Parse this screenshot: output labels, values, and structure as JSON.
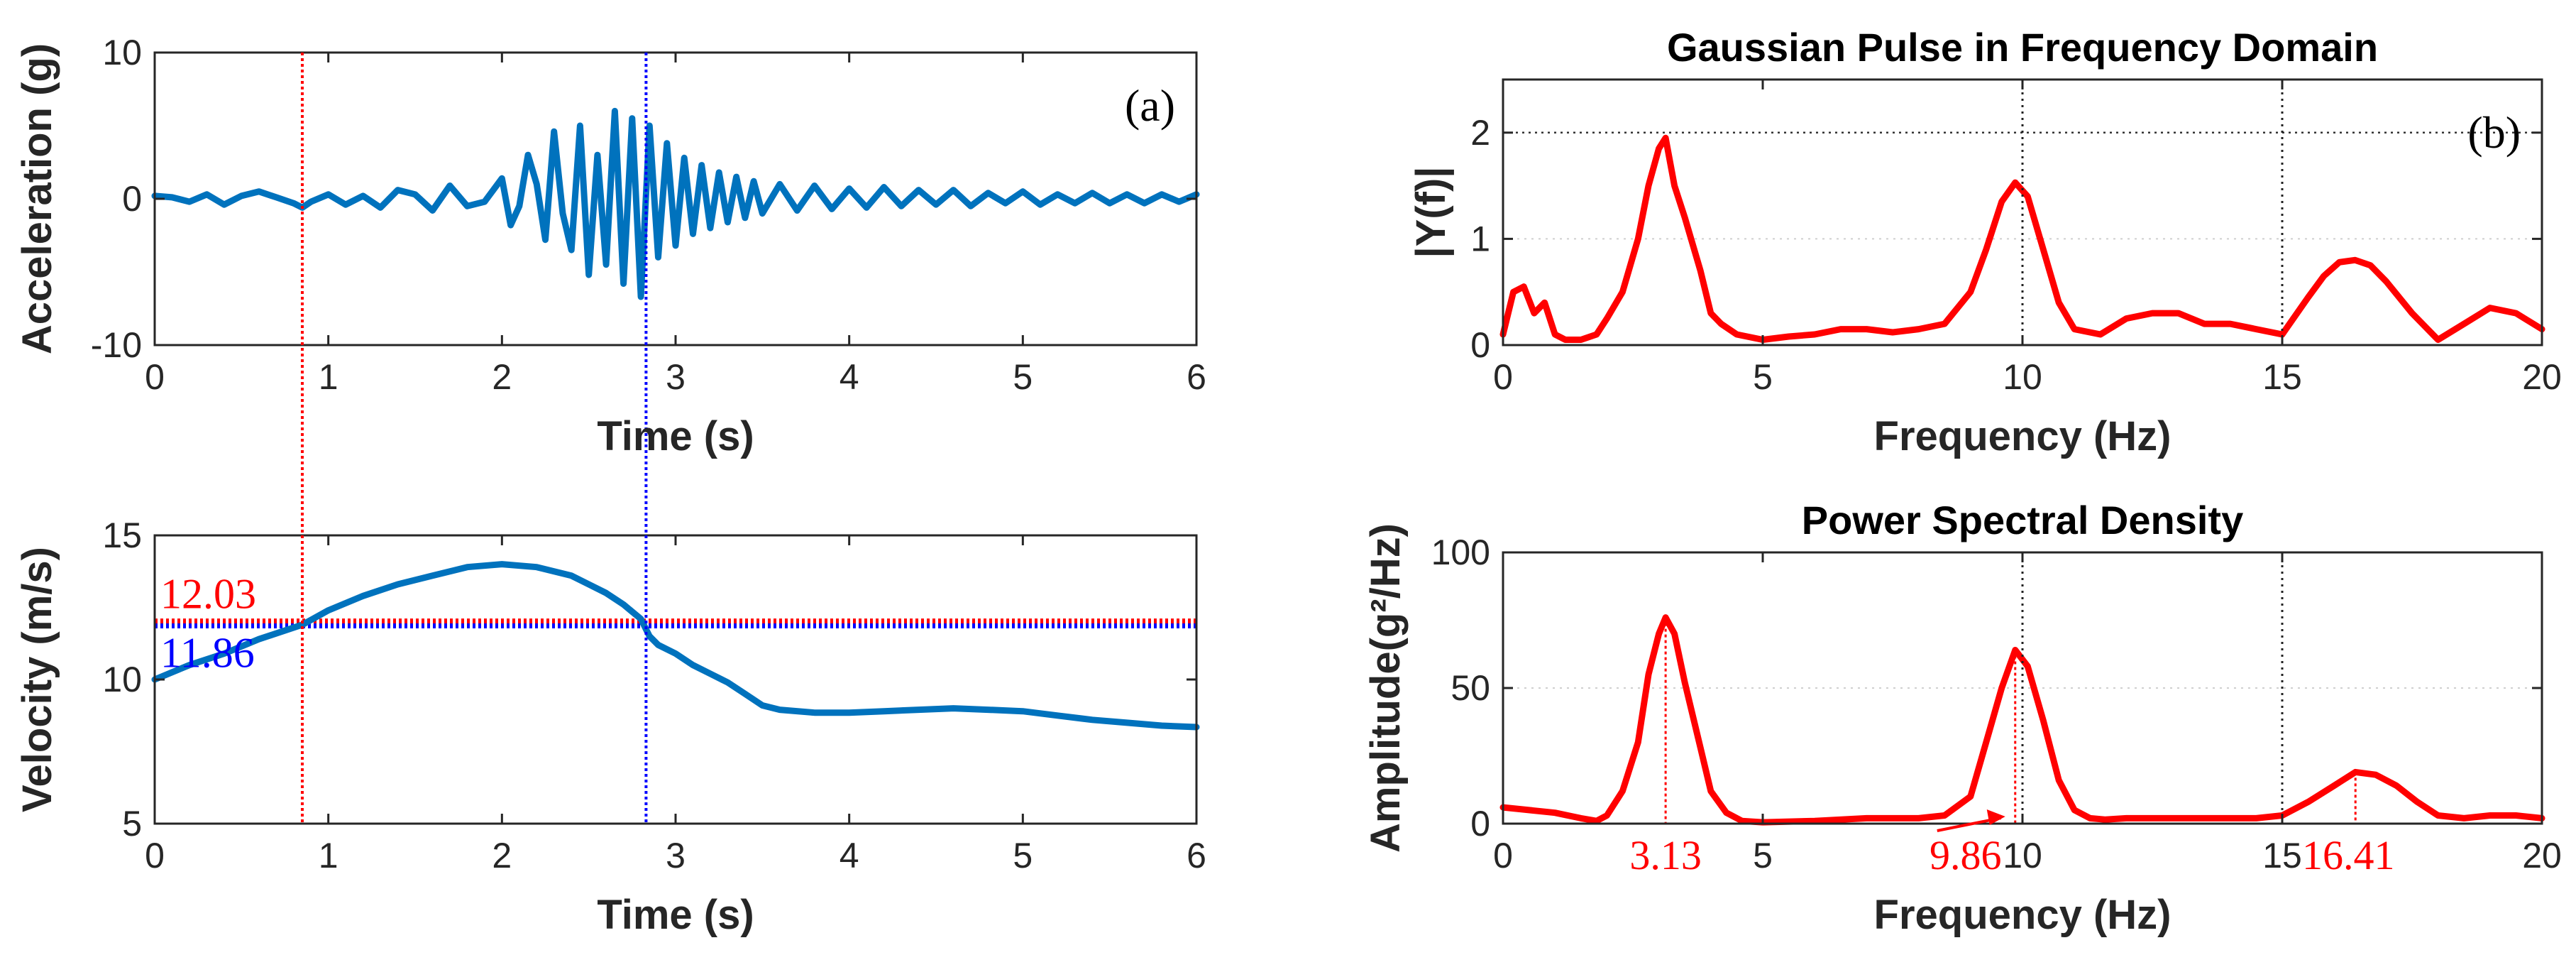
{
  "chart_data": [
    {
      "id": "acc",
      "type": "line",
      "panel_tag": "(a)",
      "title": "",
      "xlabel": "Time (s)",
      "ylabel": "Acceleration (g)",
      "xlim": [
        0,
        6
      ],
      "ylim": [
        -10,
        10
      ],
      "xticks": [
        0,
        1,
        2,
        3,
        4,
        5,
        6
      ],
      "yticks": [
        -10,
        0,
        10
      ],
      "grid": false,
      "series": [
        {
          "color": "#0072BD",
          "x": [
            0,
            0.1,
            0.2,
            0.3,
            0.4,
            0.5,
            0.6,
            0.7,
            0.8,
            0.85,
            0.9,
            1.0,
            1.1,
            1.2,
            1.3,
            1.4,
            1.5,
            1.6,
            1.7,
            1.8,
            1.9,
            2.0,
            2.05,
            2.1,
            2.15,
            2.2,
            2.25,
            2.3,
            2.35,
            2.4,
            2.45,
            2.5,
            2.55,
            2.6,
            2.65,
            2.7,
            2.75,
            2.8,
            2.85,
            2.9,
            2.95,
            3.0,
            3.05,
            3.1,
            3.15,
            3.2,
            3.25,
            3.3,
            3.35,
            3.4,
            3.45,
            3.5,
            3.6,
            3.7,
            3.8,
            3.9,
            4.0,
            4.1,
            4.2,
            4.3,
            4.4,
            4.5,
            4.6,
            4.7,
            4.8,
            4.9,
            5.0,
            5.1,
            5.2,
            5.3,
            5.4,
            5.5,
            5.6,
            5.7,
            5.8,
            5.9,
            6.0
          ],
          "y": [
            0.2,
            0.1,
            -0.2,
            0.3,
            -0.4,
            0.2,
            0.5,
            0.1,
            -0.3,
            -0.6,
            -0.2,
            0.3,
            -0.4,
            0.2,
            -0.6,
            0.6,
            0.3,
            -0.8,
            0.9,
            -0.5,
            -0.2,
            1.4,
            -1.8,
            -0.5,
            3.0,
            1.0,
            -2.8,
            4.6,
            -1.0,
            -3.5,
            5.0,
            -5.2,
            3.0,
            -4.5,
            6.0,
            -5.8,
            5.5,
            -6.7,
            5.0,
            -4.0,
            3.8,
            -3.2,
            2.8,
            -2.4,
            2.3,
            -2.0,
            1.8,
            -1.6,
            1.5,
            -1.3,
            1.2,
            -1.0,
            1.0,
            -0.8,
            0.9,
            -0.7,
            0.7,
            -0.6,
            0.8,
            -0.5,
            0.6,
            -0.4,
            0.6,
            -0.5,
            0.4,
            -0.3,
            0.5,
            -0.4,
            0.3,
            -0.3,
            0.4,
            -0.3,
            0.3,
            -0.3,
            0.3,
            -0.2,
            0.3
          ]
        }
      ],
      "markers": [
        {
          "x": 0.85,
          "color": "#FF0000"
        },
        {
          "x": 2.83,
          "color": "#0000FF"
        }
      ]
    },
    {
      "id": "vel",
      "type": "line",
      "title": "",
      "xlabel": "Time (s)",
      "ylabel": "Velocity (m/s)",
      "xlim": [
        0,
        6
      ],
      "ylim": [
        5,
        15
      ],
      "xticks": [
        0,
        1,
        2,
        3,
        4,
        5,
        6
      ],
      "yticks": [
        5,
        10,
        15
      ],
      "grid": false,
      "series": [
        {
          "color": "#0072BD",
          "x": [
            0,
            0.2,
            0.4,
            0.6,
            0.85,
            1.0,
            1.2,
            1.4,
            1.6,
            1.8,
            2.0,
            2.2,
            2.4,
            2.5,
            2.6,
            2.7,
            2.8,
            2.85,
            2.9,
            3.0,
            3.1,
            3.2,
            3.3,
            3.4,
            3.5,
            3.6,
            3.8,
            4.0,
            4.2,
            4.4,
            4.6,
            4.8,
            5.0,
            5.2,
            5.4,
            5.6,
            5.8,
            6.0
          ],
          "y": [
            10.0,
            10.5,
            10.9,
            11.4,
            11.9,
            12.4,
            12.9,
            13.3,
            13.6,
            13.9,
            14.0,
            13.9,
            13.6,
            13.3,
            13.0,
            12.6,
            12.1,
            11.5,
            11.2,
            10.9,
            10.5,
            10.2,
            9.9,
            9.5,
            9.1,
            8.95,
            8.85,
            8.85,
            8.9,
            8.95,
            9.0,
            8.95,
            8.9,
            8.75,
            8.6,
            8.5,
            8.4,
            8.35
          ]
        }
      ],
      "hlines": [
        {
          "y": 12.03,
          "label": "12.03",
          "color": "#FF0000"
        },
        {
          "y": 11.86,
          "label": "11.86",
          "color": "#0000FF"
        }
      ],
      "markers": [
        {
          "x": 0.85,
          "color": "#FF0000"
        },
        {
          "x": 2.83,
          "color": "#0000FF"
        }
      ]
    },
    {
      "id": "fft",
      "type": "line",
      "panel_tag": "(b)",
      "title": "Gaussian Pulse in Frequency Domain",
      "xlabel": "Frequency (Hz)",
      "ylabel": "|Y(f)|",
      "xlim": [
        0,
        20
      ],
      "ylim": [
        0,
        2.5
      ],
      "xticks": [
        0,
        5,
        10,
        15,
        20
      ],
      "yticks": [
        0,
        1,
        2
      ],
      "grid": true,
      "series": [
        {
          "color": "#FF0000",
          "x": [
            0,
            0.2,
            0.4,
            0.6,
            0.8,
            1.0,
            1.2,
            1.5,
            1.8,
            2.0,
            2.3,
            2.6,
            2.8,
            3.0,
            3.13,
            3.3,
            3.5,
            3.8,
            4.0,
            4.2,
            4.5,
            5.0,
            5.5,
            6.0,
            6.5,
            7.0,
            7.5,
            8.0,
            8.5,
            9.0,
            9.3,
            9.6,
            9.86,
            10.1,
            10.4,
            10.7,
            11.0,
            11.5,
            12.0,
            12.5,
            13.0,
            13.5,
            14.0,
            14.5,
            15.0,
            15.5,
            15.8,
            16.1,
            16.4,
            16.7,
            17.0,
            17.5,
            18.0,
            18.5,
            19.0,
            19.5,
            20.0
          ],
          "y": [
            0.1,
            0.5,
            0.55,
            0.3,
            0.4,
            0.1,
            0.05,
            0.05,
            0.1,
            0.25,
            0.5,
            1.0,
            1.5,
            1.85,
            1.95,
            1.5,
            1.2,
            0.7,
            0.3,
            0.2,
            0.1,
            0.05,
            0.08,
            0.1,
            0.15,
            0.15,
            0.12,
            0.15,
            0.2,
            0.5,
            0.9,
            1.35,
            1.53,
            1.4,
            0.9,
            0.4,
            0.15,
            0.1,
            0.25,
            0.3,
            0.3,
            0.2,
            0.2,
            0.15,
            0.1,
            0.45,
            0.65,
            0.78,
            0.8,
            0.75,
            0.6,
            0.3,
            0.05,
            0.2,
            0.35,
            0.3,
            0.15
          ]
        }
      ],
      "markers": [
        {
          "x": 10,
          "color": "#222222",
          "style": "dotted"
        },
        {
          "x": 15,
          "color": "#222222",
          "style": "dotted"
        }
      ],
      "grid_y": [
        2
      ]
    },
    {
      "id": "psd",
      "type": "line",
      "title": "Power Spectral Density",
      "xlabel": "Frequency (Hz)",
      "ylabel": "Amplitude(g²/Hz)",
      "xlim": [
        0,
        20
      ],
      "ylim": [
        0,
        100
      ],
      "xticks": [
        0,
        5,
        10,
        15,
        20
      ],
      "yticks": [
        0,
        50,
        100
      ],
      "grid": true,
      "series": [
        {
          "color": "#FF0000",
          "x": [
            0,
            0.5,
            1.0,
            1.5,
            1.8,
            2.0,
            2.3,
            2.6,
            2.8,
            3.0,
            3.13,
            3.3,
            3.5,
            3.8,
            4.0,
            4.3,
            4.6,
            5.0,
            6.0,
            7.0,
            8.0,
            8.5,
            9.0,
            9.3,
            9.6,
            9.86,
            10.1,
            10.4,
            10.7,
            11.0,
            11.3,
            11.6,
            12.0,
            13.0,
            14.0,
            14.5,
            15.0,
            15.5,
            16.0,
            16.41,
            16.8,
            17.2,
            17.6,
            18.0,
            18.5,
            19.0,
            19.5,
            20.0
          ],
          "y": [
            6,
            5,
            4,
            2,
            1,
            3,
            12,
            30,
            55,
            70,
            76,
            70,
            52,
            28,
            12,
            4,
            1,
            0.5,
            1,
            2,
            2,
            3,
            10,
            30,
            50,
            64,
            58,
            38,
            16,
            5,
            2,
            1.5,
            2,
            2,
            2,
            2,
            3,
            8,
            14,
            19,
            18,
            14,
            8,
            3,
            2,
            3,
            3,
            2
          ]
        }
      ],
      "peaks": [
        {
          "x": 3.13,
          "y": 76,
          "label": "3.13"
        },
        {
          "x": 9.86,
          "y": 64,
          "label": "9.86"
        },
        {
          "x": 16.41,
          "y": 19,
          "label": "16.41"
        }
      ],
      "markers": [
        {
          "x": 10,
          "color": "#222222",
          "style": "dotted"
        },
        {
          "x": 15,
          "color": "#222222",
          "style": "dotted"
        }
      ]
    }
  ]
}
